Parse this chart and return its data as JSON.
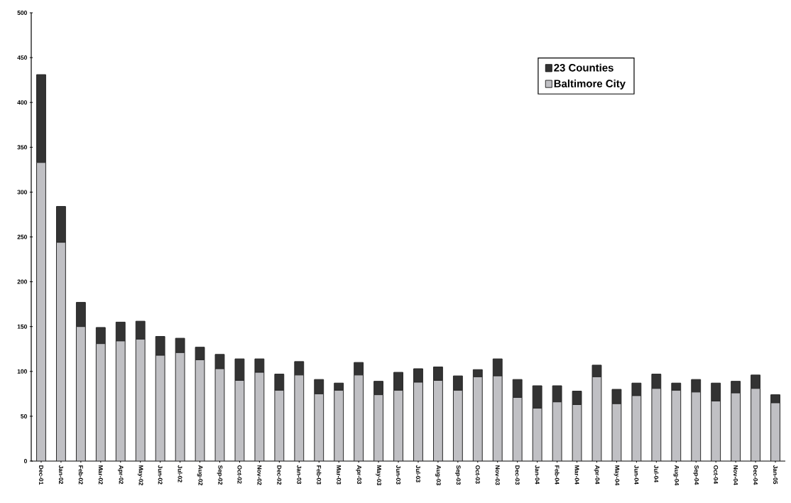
{
  "chart_data": {
    "type": "bar",
    "stacked": true,
    "categories": [
      "Dec-01",
      "Jan-02",
      "Feb-02",
      "Mar-02",
      "Apr-02",
      "May-02",
      "Jun-02",
      "Jul-02",
      "Aug-02",
      "Sep-02",
      "Oct-02",
      "Nov-02",
      "Dec-02",
      "Jan-03",
      "Feb-03",
      "Mar-03",
      "Apr-03",
      "May-03",
      "Jun-03",
      "Jul-03",
      "Aug-03",
      "Sep-03",
      "Oct-03",
      "Nov-03",
      "Dec-03",
      "Jan-04",
      "Feb-04",
      "Mar-04",
      "Apr-04",
      "May-04",
      "Jun-04",
      "Jul-04",
      "Aug-04",
      "Sep-04",
      "Oct-04",
      "Nov-04",
      "Dec-04",
      "Jan-05"
    ],
    "series": [
      {
        "name": "Baltimore City",
        "color": "#c0c0c4",
        "values": [
          333,
          244,
          150,
          131,
          134,
          136,
          118,
          121,
          113,
          103,
          90,
          99,
          79,
          96,
          75,
          79,
          96,
          74,
          79,
          88,
          90,
          79,
          94,
          95,
          71,
          59,
          66,
          63,
          94,
          64,
          73,
          81,
          79,
          77,
          67,
          76,
          81,
          65
        ]
      },
      {
        "name": "23 Counties",
        "color": "#333333",
        "values": [
          98,
          40,
          27,
          18,
          21,
          20,
          21,
          16,
          14,
          16,
          24,
          15,
          18,
          15,
          16,
          8,
          14,
          15,
          20,
          15,
          15,
          16,
          8,
          19,
          20,
          25,
          18,
          15,
          13,
          16,
          14,
          16,
          8,
          14,
          20,
          13,
          15,
          9
        ]
      }
    ],
    "ylim": [
      0,
      500
    ],
    "yticks": [
      0,
      50,
      100,
      150,
      200,
      250,
      300,
      350,
      400,
      450,
      500
    ],
    "grid": false,
    "legend": "top right"
  }
}
